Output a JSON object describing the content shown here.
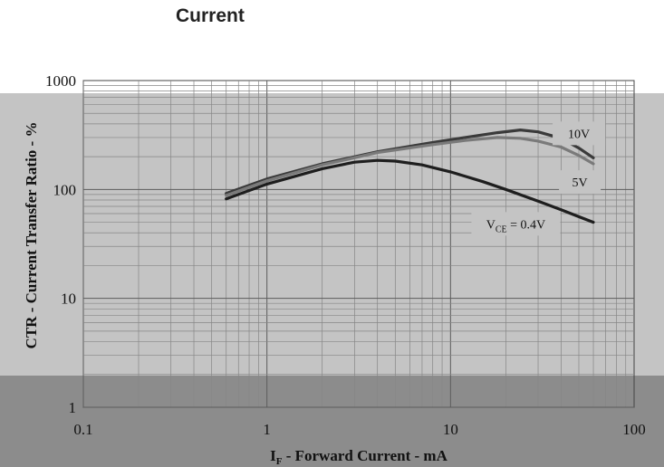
{
  "title": "Current",
  "chart_data": {
    "type": "line",
    "xscale": "log",
    "yscale": "log",
    "xlim": [
      0.1,
      100
    ],
    "ylim": [
      1,
      1000
    ],
    "grid": true,
    "x_ticks": [
      "0.1",
      "1",
      "10",
      "100"
    ],
    "y_ticks": [
      "1",
      "10",
      "100",
      "1000"
    ],
    "xlabel": {
      "main": "I",
      "sub": "F",
      "rest": " - Forward Current - mA"
    },
    "ylabel": {
      "main": "C",
      "rest": "TR - Current Transfer Ratio - %"
    },
    "series": [
      {
        "name": "10V",
        "color": "#3a3a3a",
        "x": [
          0.6,
          1,
          2,
          4,
          8,
          12,
          18,
          24,
          30,
          40,
          50,
          60
        ],
        "y": [
          92,
          125,
          172,
          222,
          270,
          300,
          332,
          352,
          338,
          295,
          240,
          195
        ]
      },
      {
        "name": "5V",
        "color": "#7a7a7a",
        "x": [
          0.6,
          1,
          2,
          4,
          8,
          12,
          18,
          24,
          30,
          40,
          50,
          60
        ],
        "y": [
          88,
          120,
          168,
          218,
          258,
          282,
          300,
          295,
          278,
          245,
          205,
          172
        ]
      },
      {
        "name": "V_CE = 0.4V",
        "color": "#1e1e1e",
        "x": [
          0.6,
          1,
          2,
          3,
          4,
          5,
          7,
          10,
          15,
          20,
          30,
          40,
          60
        ],
        "y": [
          82,
          112,
          155,
          178,
          185,
          182,
          168,
          145,
          118,
          100,
          78,
          65,
          50
        ]
      }
    ],
    "annotations": [
      {
        "series": "10V",
        "text": "10V"
      },
      {
        "series": "5V",
        "text": "5V"
      },
      {
        "series": "V_CE = 0.4V",
        "main": "V",
        "sub": "CE",
        "rest": " = 0.4V"
      }
    ]
  },
  "colors": {
    "plot_bg": "#c4c4c4",
    "band_bg": "#8c8c8c",
    "gridline": "#868686",
    "gridline_major": "#5c5c5c"
  }
}
